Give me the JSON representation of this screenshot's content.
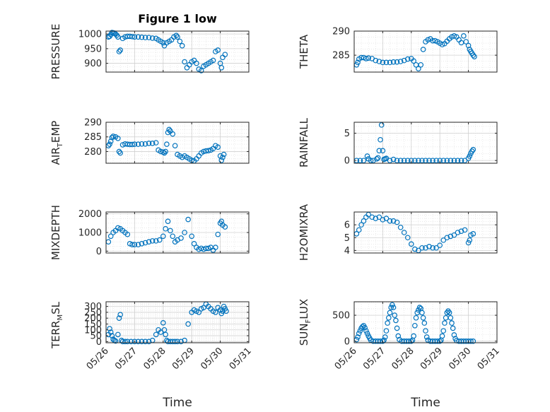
{
  "figure": {
    "title": "Figure 1 low",
    "marker_color": "#0072bd"
  },
  "chart_data": [
    {
      "type": "scatter",
      "title": "Figure 1 low",
      "ylabel": "PRESSURE",
      "xlabel": "",
      "ylim": [
        870,
        1010
      ],
      "yticks": [
        900,
        950,
        1000
      ],
      "xlim": [
        "05/26",
        "05/31"
      ],
      "xticks": [
        "05/26",
        "05/27",
        "05/28",
        "05/29",
        "05/30",
        "05/31"
      ],
      "grid": true,
      "x": [
        "05/26 02:00",
        "05/26 03:00",
        "05/26 04:00",
        "05/26 05:00",
        "05/26 06:00",
        "05/26 07:00",
        "05/26 08:00",
        "05/26 09:00",
        "05/26 10:00",
        "05/26 11:00",
        "05/26 12:00",
        "05/26 14:00",
        "05/26 16:00",
        "05/26 18:00",
        "05/26 20:00",
        "05/26 22:00",
        "05/27 00:00",
        "05/27 03:00",
        "05/27 06:00",
        "05/27 09:00",
        "05/27 12:00",
        "05/27 15:00",
        "05/27 18:00",
        "05/27 20:00",
        "05/27 22:00",
        "05/28 00:00",
        "05/28 01:00",
        "05/28 03:00",
        "05/28 05:00",
        "05/28 07:00",
        "05/28 09:00",
        "05/28 11:00",
        "05/28 12:00",
        "05/28 14:00",
        "05/28 16:00",
        "05/28 18:00",
        "05/28 20:00",
        "05/28 22:00",
        "05/29 00:00",
        "05/29 02:00",
        "05/29 04:00",
        "05/29 06:00",
        "05/29 08:00",
        "05/29 10:00",
        "05/29 12:00",
        "05/29 14:00",
        "05/29 16:00",
        "05/29 18:00",
        "05/29 20:00",
        "05/29 22:00",
        "05/30 00:00",
        "05/30 01:00",
        "05/30 02:00",
        "05/30 04:00"
      ],
      "y": [
        990,
        992,
        998,
        1005,
        1004,
        1003,
        1000,
        996,
        990,
        940,
        945,
        985,
        990,
        992,
        992,
        991,
        990,
        990,
        989,
        988,
        988,
        986,
        985,
        980,
        975,
        970,
        960,
        970,
        975,
        980,
        990,
        995,
        990,
        975,
        960,
        905,
        885,
        895,
        905,
        910,
        900,
        880,
        875,
        890,
        895,
        900,
        905,
        910,
        940,
        945,
        900,
        885,
        920,
        930
      ]
    },
    {
      "type": "scatter",
      "ylabel": "THETA",
      "xlabel": "",
      "ylim": [
        281.5,
        290
      ],
      "yticks": [
        285,
        290
      ],
      "xlim": [
        "05/26",
        "05/31"
      ],
      "xticks": [
        "05/26",
        "05/27",
        "05/28",
        "05/29",
        "05/30",
        "05/31"
      ],
      "grid": true,
      "x": [
        "05/26 02:00",
        "05/26 03:00",
        "05/26 04:00",
        "05/26 06:00",
        "05/26 08:00",
        "05/26 10:00",
        "05/26 12:00",
        "05/26 15:00",
        "05/26 18:00",
        "05/26 21:00",
        "05/27 00:00",
        "05/27 03:00",
        "05/27 06:00",
        "05/27 09:00",
        "05/27 12:00",
        "05/27 15:00",
        "05/27 18:00",
        "05/27 21:00",
        "05/28 00:00",
        "05/28 02:00",
        "05/28 04:00",
        "05/28 06:00",
        "05/28 08:00",
        "05/28 10:00",
        "05/28 12:00",
        "05/28 14:00",
        "05/28 16:00",
        "05/28 18:00",
        "05/28 20:00",
        "05/28 22:00",
        "05/29 00:00",
        "05/29 02:00",
        "05/29 04:00",
        "05/29 06:00",
        "05/29 08:00",
        "05/29 10:00",
        "05/29 12:00",
        "05/29 14:00",
        "05/29 16:00",
        "05/29 18:00",
        "05/29 20:00",
        "05/29 22:00",
        "05/30 00:00",
        "05/30 01:00",
        "05/30 02:00",
        "05/30 03:00",
        "05/30 04:00",
        "05/30 05:00"
      ],
      "y": [
        283.0,
        283.5,
        284.2,
        284.5,
        284.5,
        284.3,
        284.4,
        284.3,
        283.9,
        283.7,
        283.5,
        283.5,
        283.5,
        283.6,
        283.6,
        283.7,
        283.9,
        284.2,
        284.3,
        283.8,
        283.0,
        282.2,
        283.0,
        286.2,
        287.8,
        288.2,
        288.4,
        288.0,
        288.0,
        287.8,
        287.5,
        287.2,
        287.4,
        287.9,
        288.4,
        288.8,
        289.0,
        288.8,
        288.2,
        287.6,
        289.0,
        287.8,
        287.0,
        286.2,
        285.8,
        285.4,
        285.0,
        284.7
      ]
    },
    {
      "type": "scatter",
      "ylabel": "AIR_TEMP",
      "xlabel": "",
      "ylim": [
        276,
        290
      ],
      "yticks": [
        280,
        285,
        290
      ],
      "xlim": [
        "05/26",
        "05/31"
      ],
      "xticks": [
        "05/26",
        "05/27",
        "05/28",
        "05/29",
        "05/30",
        "05/31"
      ],
      "grid": true,
      "x": [
        "05/26 02:00",
        "05/26 03:00",
        "05/26 04:00",
        "05/26 05:00",
        "05/26 06:00",
        "05/26 08:00",
        "05/26 10:00",
        "05/26 11:00",
        "05/26 12:00",
        "05/26 14:00",
        "05/26 16:00",
        "05/26 18:00",
        "05/26 20:00",
        "05/26 22:00",
        "05/27 00:00",
        "05/27 03:00",
        "05/27 06:00",
        "05/27 09:00",
        "05/27 12:00",
        "05/27 15:00",
        "05/27 18:00",
        "05/27 20:00",
        "05/27 22:00",
        "05/28 00:00",
        "05/28 01:00",
        "05/28 02:00",
        "05/28 03:00",
        "05/28 04:00",
        "05/28 05:00",
        "05/28 06:00",
        "05/28 08:00",
        "05/28 10:00",
        "05/28 12:00",
        "05/28 14:00",
        "05/28 16:00",
        "05/28 18:00",
        "05/28 20:00",
        "05/28 22:00",
        "05/29 00:00",
        "05/29 02:00",
        "05/29 04:00",
        "05/29 06:00",
        "05/29 08:00",
        "05/29 10:00",
        "05/29 12:00",
        "05/29 14:00",
        "05/29 16:00",
        "05/29 18:00",
        "05/29 20:00",
        "05/29 22:00",
        "05/30 00:00",
        "05/30 01:00",
        "05/30 02:00",
        "05/30 03:00"
      ],
      "y": [
        282.0,
        282.5,
        283.5,
        284.8,
        285.2,
        285.0,
        284.5,
        280.0,
        279.5,
        282.3,
        282.6,
        282.5,
        282.4,
        282.4,
        282.5,
        282.5,
        282.6,
        282.6,
        282.8,
        282.8,
        283.0,
        280.5,
        280.0,
        279.8,
        279.5,
        280.0,
        282.5,
        286.5,
        287.5,
        287.0,
        286.0,
        282.0,
        279.0,
        278.5,
        278.0,
        278.5,
        278.0,
        277.5,
        277.0,
        276.8,
        277.5,
        278.5,
        279.5,
        280.0,
        280.2,
        280.3,
        280.5,
        281.0,
        282.0,
        281.5,
        278.5,
        277.0,
        278.0,
        279.0
      ]
    },
    {
      "type": "scatter",
      "ylabel": "RAINFALL",
      "xlabel": "",
      "ylim": [
        -0.5,
        7
      ],
      "yticks": [
        0,
        5
      ],
      "xlim": [
        "05/26",
        "05/31"
      ],
      "xticks": [
        "05/26",
        "05/27",
        "05/28",
        "05/29",
        "05/30",
        "05/31"
      ],
      "grid": true,
      "x": [
        "05/26 02:00",
        "05/26 05:00",
        "05/26 08:00",
        "05/26 11:00",
        "05/26 12:00",
        "05/26 14:00",
        "05/26 16:00",
        "05/26 19:00",
        "05/26 20:00",
        "05/26 21:00",
        "05/26 22:00",
        "05/26 23:00",
        "05/27 00:00",
        "05/27 01:00",
        "05/27 02:00",
        "05/27 03:00",
        "05/27 06:00",
        "05/27 09:00",
        "05/27 12:00",
        "05/27 15:00",
        "05/27 18:00",
        "05/27 21:00",
        "05/28 00:00",
        "05/28 03:00",
        "05/28 06:00",
        "05/28 09:00",
        "05/28 12:00",
        "05/28 15:00",
        "05/28 18:00",
        "05/28 21:00",
        "05/29 00:00",
        "05/29 03:00",
        "05/29 06:00",
        "05/29 09:00",
        "05/29 12:00",
        "05/29 15:00",
        "05/29 18:00",
        "05/29 21:00",
        "05/30 00:00",
        "05/30 01:00",
        "05/30 02:00",
        "05/30 03:00",
        "05/30 04:00"
      ],
      "y": [
        0,
        0,
        0,
        0.8,
        0.3,
        0,
        0,
        0.3,
        0.5,
        1.8,
        3.8,
        6.5,
        1.8,
        0.2,
        0.3,
        0.4,
        0,
        0.2,
        0,
        0,
        0,
        0,
        0,
        0,
        0,
        0,
        0,
        0,
        0,
        0,
        0,
        0,
        0,
        0,
        0,
        0,
        0,
        0,
        0.4,
        0.8,
        1.3,
        1.7,
        2.0
      ]
    },
    {
      "type": "scatter",
      "ylabel": "MIXDEPTH",
      "xlabel": "",
      "ylim": [
        -100,
        2100
      ],
      "yticks": [
        0,
        1000,
        2000
      ],
      "xlim": [
        "05/26",
        "05/31"
      ],
      "xticks": [
        "05/26",
        "05/27",
        "05/28",
        "05/29",
        "05/30",
        "05/31"
      ],
      "grid": true,
      "x": [
        "05/26 02:00",
        "05/26 04:00",
        "05/26 06:00",
        "05/26 08:00",
        "05/26 10:00",
        "05/26 12:00",
        "05/26 14:00",
        "05/26 16:00",
        "05/26 18:00",
        "05/26 20:00",
        "05/26 22:00",
        "05/27 00:00",
        "05/27 03:00",
        "05/27 06:00",
        "05/27 09:00",
        "05/27 12:00",
        "05/27 15:00",
        "05/27 18:00",
        "05/27 21:00",
        "05/28 00:00",
        "05/28 02:00",
        "05/28 04:00",
        "05/28 06:00",
        "05/28 08:00",
        "05/28 10:00",
        "05/28 12:00",
        "05/28 15:00",
        "05/28 18:00",
        "05/28 21:00",
        "05/29 00:00",
        "05/29 02:00",
        "05/29 04:00",
        "05/29 06:00",
        "05/29 08:00",
        "05/29 10:00",
        "05/29 12:00",
        "05/29 14:00",
        "05/29 16:00",
        "05/29 18:00",
        "05/29 20:00",
        "05/29 22:00",
        "05/30 00:00",
        "05/30 01:00",
        "05/30 02:00",
        "05/30 04:00"
      ],
      "y": [
        500,
        800,
        1000,
        1100,
        1250,
        1200,
        1100,
        1000,
        900,
        400,
        350,
        350,
        350,
        400,
        450,
        500,
        550,
        550,
        600,
        800,
        1200,
        1600,
        1100,
        800,
        500,
        600,
        700,
        1000,
        1700,
        800,
        400,
        200,
        100,
        150,
        100,
        150,
        150,
        200,
        50,
        200,
        900,
        1500,
        1600,
        1400,
        1300
      ]
    },
    {
      "type": "scatter",
      "ylabel": "H2OMIXRA",
      "xlabel": "",
      "ylim": [
        3.8,
        7
      ],
      "yticks": [
        4,
        5,
        6
      ],
      "xlim": [
        "05/26",
        "05/31"
      ],
      "xticks": [
        "05/26",
        "05/27",
        "05/28",
        "05/29",
        "05/30",
        "05/31"
      ],
      "grid": true,
      "x": [
        "05/26 02:00",
        "05/26 04:00",
        "05/26 06:00",
        "05/26 08:00",
        "05/26 10:00",
        "05/26 12:00",
        "05/26 15:00",
        "05/26 18:00",
        "05/26 21:00",
        "05/27 00:00",
        "05/27 03:00",
        "05/27 06:00",
        "05/27 09:00",
        "05/27 12:00",
        "05/27 15:00",
        "05/27 18:00",
        "05/27 21:00",
        "05/28 00:00",
        "05/28 03:00",
        "05/28 06:00",
        "05/28 09:00",
        "05/28 12:00",
        "05/28 15:00",
        "05/28 18:00",
        "05/28 21:00",
        "05/29 00:00",
        "05/29 03:00",
        "05/29 06:00",
        "05/29 09:00",
        "05/29 12:00",
        "05/29 15:00",
        "05/29 18:00",
        "05/29 21:00",
        "05/30 00:00",
        "05/30 01:00",
        "05/30 02:00",
        "05/30 04:00"
      ],
      "y": [
        5.3,
        5.6,
        6.0,
        6.3,
        6.6,
        6.8,
        6.6,
        6.5,
        6.6,
        6.4,
        6.5,
        6.3,
        6.3,
        6.2,
        5.8,
        5.4,
        5.0,
        4.5,
        4.1,
        4.0,
        4.2,
        4.2,
        4.3,
        4.2,
        4.2,
        4.4,
        4.8,
        5.0,
        5.1,
        5.2,
        5.4,
        5.5,
        5.6,
        4.6,
        4.8,
        5.2,
        5.3
      ]
    },
    {
      "type": "scatter",
      "ylabel": "TERR_MSL",
      "xlabel": "Time",
      "ylim": [
        -10,
        340
      ],
      "yticks": [
        0,
        50,
        100,
        150,
        200,
        250,
        300
      ],
      "xlim": [
        "05/26",
        "05/31"
      ],
      "xticks": [
        "05/26",
        "05/27",
        "05/28",
        "05/29",
        "05/30",
        "05/31"
      ],
      "grid": true,
      "x": [
        "05/26 02:00",
        "05/26 03:00",
        "05/26 04:00",
        "05/26 05:00",
        "05/26 06:00",
        "05/26 07:00",
        "05/26 08:00",
        "05/26 10:00",
        "05/26 11:00",
        "05/26 12:00",
        "05/26 13:00",
        "05/26 14:00",
        "05/26 16:00",
        "05/26 18:00",
        "05/26 21:00",
        "05/27 00:00",
        "05/27 03:00",
        "05/27 06:00",
        "05/27 09:00",
        "05/27 12:00",
        "05/27 15:00",
        "05/27 18:00",
        "05/27 20:00",
        "05/27 22:00",
        "05/28 00:00",
        "05/28 01:00",
        "05/28 02:00",
        "05/28 03:00",
        "05/28 04:00",
        "05/28 06:00",
        "05/28 08:00",
        "05/28 10:00",
        "05/28 12:00",
        "05/28 15:00",
        "05/28 18:00",
        "05/28 21:00",
        "05/29 00:00",
        "05/29 02:00",
        "05/29 04:00",
        "05/29 06:00",
        "05/29 08:00",
        "05/29 10:00",
        "05/29 12:00",
        "05/29 14:00",
        "05/29 16:00",
        "05/29 18:00",
        "05/29 20:00",
        "05/29 22:00",
        "05/30 00:00",
        "05/30 01:00",
        "05/30 02:00",
        "05/30 03:00",
        "05/30 04:00",
        "05/30 05:00"
      ],
      "y": [
        60,
        110,
        80,
        50,
        20,
        10,
        5,
        60,
        200,
        230,
        10,
        0,
        0,
        0,
        0,
        0,
        0,
        0,
        0,
        0,
        10,
        60,
        100,
        80,
        160,
        100,
        60,
        10,
        0,
        0,
        0,
        0,
        0,
        0,
        10,
        150,
        250,
        270,
        260,
        250,
        280,
        290,
        320,
        300,
        280,
        260,
        250,
        290,
        270,
        240,
        260,
        300,
        280,
        260
      ]
    },
    {
      "type": "scatter",
      "ylabel": "SUN_FLUX",
      "xlabel": "Time",
      "ylim": [
        -30,
        760
      ],
      "yticks": [
        0,
        500
      ],
      "xlim": [
        "05/26",
        "05/31"
      ],
      "xticks": [
        "05/26",
        "05/27",
        "05/28",
        "05/29",
        "05/30",
        "05/31"
      ],
      "grid": true,
      "x": [
        "05/26 02:00",
        "05/26 03:00",
        "05/26 04:00",
        "05/26 05:00",
        "05/26 06:00",
        "05/26 07:00",
        "05/26 08:00",
        "05/26 09:00",
        "05/26 10:00",
        "05/26 11:00",
        "05/26 12:00",
        "05/26 13:00",
        "05/26 14:00",
        "05/26 16:00",
        "05/26 18:00",
        "05/26 20:00",
        "05/26 22:00",
        "05/27 00:00",
        "05/27 01:00",
        "05/27 02:00",
        "05/27 03:00",
        "05/27 04:00",
        "05/27 05:00",
        "05/27 06:00",
        "05/27 07:00",
        "05/27 08:00",
        "05/27 09:00",
        "05/27 10:00",
        "05/27 11:00",
        "05/27 12:00",
        "05/27 13:00",
        "05/27 14:00",
        "05/27 16:00",
        "05/27 18:00",
        "05/27 20:00",
        "05/27 22:00",
        "05/28 00:00",
        "05/28 01:00",
        "05/28 02:00",
        "05/28 03:00",
        "05/28 04:00",
        "05/28 05:00",
        "05/28 06:00",
        "05/28 07:00",
        "05/28 08:00",
        "05/28 09:00",
        "05/28 10:00",
        "05/28 11:00",
        "05/28 12:00",
        "05/28 13:00",
        "05/28 14:00",
        "05/28 16:00",
        "05/28 18:00",
        "05/28 20:00",
        "05/28 22:00",
        "05/29 00:00",
        "05/29 01:00",
        "05/29 02:00",
        "05/29 03:00",
        "05/29 04:00",
        "05/29 05:00",
        "05/29 06:00",
        "05/29 07:00",
        "05/29 08:00",
        "05/29 09:00",
        "05/29 10:00",
        "05/29 11:00",
        "05/29 12:00",
        "05/29 13:00",
        "05/29 14:00",
        "05/29 16:00",
        "05/29 18:00",
        "05/29 20:00",
        "05/29 22:00",
        "05/30 00:00",
        "05/30 02:00",
        "05/30 04:00"
      ],
      "y": [
        30,
        80,
        150,
        200,
        250,
        280,
        300,
        260,
        200,
        150,
        100,
        60,
        20,
        0,
        0,
        0,
        0,
        0,
        20,
        80,
        200,
        350,
        450,
        550,
        650,
        700,
        650,
        500,
        400,
        250,
        100,
        30,
        0,
        0,
        0,
        0,
        0,
        20,
        100,
        300,
        450,
        550,
        600,
        650,
        630,
        550,
        450,
        350,
        200,
        80,
        20,
        0,
        0,
        0,
        0,
        0,
        20,
        100,
        200,
        350,
        450,
        550,
        580,
        550,
        450,
        350,
        250,
        120,
        50,
        10,
        0,
        0,
        0,
        0,
        0,
        0,
        0
      ]
    }
  ]
}
